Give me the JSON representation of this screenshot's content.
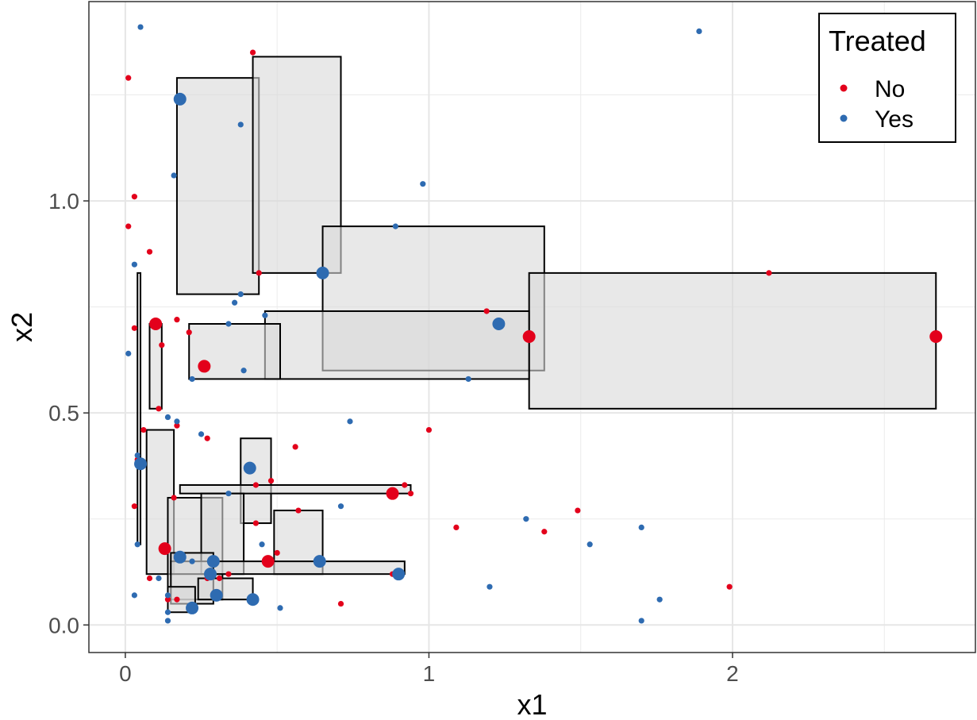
{
  "chart_data": {
    "type": "scatter",
    "title": "",
    "xlabel": "x1",
    "ylabel": "x2",
    "xlim": [
      -0.12,
      2.8
    ],
    "ylim": [
      -0.065,
      1.47
    ],
    "x_ticks": [
      0,
      1,
      2
    ],
    "x_tick_labels": [
      "0",
      "1",
      "2"
    ],
    "y_ticks": [
      0.0,
      0.5,
      1.0
    ],
    "y_tick_labels": [
      "0.0",
      "0.5",
      "1.0"
    ],
    "x_minor_ticks": [
      0.5,
      1.5,
      2.5
    ],
    "y_minor_ticks": [
      0.25,
      0.75,
      1.25
    ],
    "grid": true,
    "legend": {
      "title": "Treated",
      "position": "top-right",
      "entries": [
        {
          "label": "No",
          "color": "#E3001B"
        },
        {
          "label": "Yes",
          "color": "#2E6BB1"
        }
      ]
    },
    "colors": {
      "No": "#E3001B",
      "Yes": "#2E6BB1",
      "box_fill": "#d9d9d9",
      "box_stroke": "#000000"
    },
    "rectangles": [
      {
        "x0": 0.17,
        "x1": 0.44,
        "y0": 0.78,
        "y1": 1.29
      },
      {
        "x0": 0.42,
        "x1": 0.71,
        "y0": 0.83,
        "y1": 1.34
      },
      {
        "x0": 0.65,
        "x1": 1.38,
        "y0": 0.6,
        "y1": 0.94
      },
      {
        "x0": 1.33,
        "x1": 2.67,
        "y0": 0.51,
        "y1": 0.83
      },
      {
        "x0": 0.46,
        "x1": 1.33,
        "y0": 0.58,
        "y1": 0.74
      },
      {
        "x0": 0.21,
        "x1": 0.51,
        "y0": 0.58,
        "y1": 0.71
      },
      {
        "x0": 0.08,
        "x1": 0.12,
        "y0": 0.51,
        "y1": 0.71
      },
      {
        "x0": 0.04,
        "x1": 0.05,
        "y0": 0.19,
        "y1": 0.83
      },
      {
        "x0": 0.07,
        "x1": 0.16,
        "y0": 0.12,
        "y1": 0.46
      },
      {
        "x0": 0.38,
        "x1": 0.48,
        "y0": 0.24,
        "y1": 0.44
      },
      {
        "x0": 0.18,
        "x1": 0.94,
        "y0": 0.31,
        "y1": 0.33
      },
      {
        "x0": 0.14,
        "x1": 0.32,
        "y0": 0.06,
        "y1": 0.3
      },
      {
        "x0": 0.25,
        "x1": 0.39,
        "y0": 0.12,
        "y1": 0.31
      },
      {
        "x0": 0.49,
        "x1": 0.65,
        "y0": 0.12,
        "y1": 0.27
      },
      {
        "x0": 0.15,
        "x1": 0.92,
        "y0": 0.12,
        "y1": 0.15
      },
      {
        "x0": 0.15,
        "x1": 0.29,
        "y0": 0.05,
        "y1": 0.17
      },
      {
        "x0": 0.24,
        "x1": 0.42,
        "y0": 0.06,
        "y1": 0.11
      },
      {
        "x0": 0.14,
        "x1": 0.23,
        "y0": 0.03,
        "y1": 0.09
      }
    ],
    "series": [
      {
        "name": "No",
        "points": [
          [
            0.01,
            1.29,
            1
          ],
          [
            0.42,
            1.35,
            1
          ],
          [
            0.03,
            1.01,
            1
          ],
          [
            0.01,
            0.94,
            1
          ],
          [
            0.08,
            0.88,
            1
          ],
          [
            0.44,
            0.83,
            1
          ],
          [
            2.12,
            0.83,
            1
          ],
          [
            1.19,
            0.74,
            1
          ],
          [
            0.17,
            0.72,
            1
          ],
          [
            0.03,
            0.7,
            1
          ],
          [
            0.1,
            0.71,
            2
          ],
          [
            1.33,
            0.68,
            2
          ],
          [
            2.67,
            0.68,
            2
          ],
          [
            0.21,
            0.69,
            1
          ],
          [
            0.12,
            0.66,
            1
          ],
          [
            0.26,
            0.61,
            2
          ],
          [
            0.11,
            0.51,
            1
          ],
          [
            0.06,
            0.46,
            1
          ],
          [
            0.17,
            0.47,
            1
          ],
          [
            1.0,
            0.46,
            1
          ],
          [
            0.27,
            0.44,
            1
          ],
          [
            0.56,
            0.42,
            1
          ],
          [
            0.04,
            0.39,
            1
          ],
          [
            0.43,
            0.33,
            1
          ],
          [
            0.48,
            0.34,
            1
          ],
          [
            0.88,
            0.31,
            2
          ],
          [
            0.92,
            0.33,
            1
          ],
          [
            0.94,
            0.31,
            1
          ],
          [
            0.16,
            0.3,
            1
          ],
          [
            0.03,
            0.28,
            1
          ],
          [
            0.57,
            0.27,
            1
          ],
          [
            1.49,
            0.27,
            1
          ],
          [
            0.43,
            0.24,
            1
          ],
          [
            1.09,
            0.23,
            1
          ],
          [
            1.38,
            0.22,
            1
          ],
          [
            0.13,
            0.18,
            2
          ],
          [
            0.5,
            0.17,
            1
          ],
          [
            0.47,
            0.15,
            2
          ],
          [
            0.88,
            0.12,
            1
          ],
          [
            0.34,
            0.12,
            1
          ],
          [
            0.31,
            0.11,
            1
          ],
          [
            0.27,
            0.11,
            1
          ],
          [
            0.08,
            0.11,
            1
          ],
          [
            0.14,
            0.06,
            1
          ],
          [
            0.17,
            0.06,
            1
          ],
          [
            1.99,
            0.09,
            1
          ],
          [
            0.71,
            0.05,
            1
          ]
        ]
      },
      {
        "name": "Yes",
        "points": [
          [
            0.05,
            1.41,
            1
          ],
          [
            1.89,
            1.4,
            1
          ],
          [
            0.18,
            1.24,
            2
          ],
          [
            0.38,
            1.18,
            1
          ],
          [
            0.16,
            1.06,
            1
          ],
          [
            0.98,
            1.04,
            1
          ],
          [
            0.89,
            0.94,
            1
          ],
          [
            0.03,
            0.85,
            1
          ],
          [
            0.65,
            0.83,
            2
          ],
          [
            0.38,
            0.78,
            1
          ],
          [
            0.36,
            0.76,
            1
          ],
          [
            0.46,
            0.73,
            1
          ],
          [
            0.34,
            0.71,
            1
          ],
          [
            1.23,
            0.71,
            2
          ],
          [
            0.01,
            0.64,
            1
          ],
          [
            0.39,
            0.6,
            1
          ],
          [
            0.22,
            0.58,
            1
          ],
          [
            1.13,
            0.58,
            1
          ],
          [
            0.14,
            0.49,
            1
          ],
          [
            0.74,
            0.48,
            1
          ],
          [
            0.17,
            0.48,
            1
          ],
          [
            0.25,
            0.45,
            1
          ],
          [
            0.04,
            0.4,
            1
          ],
          [
            0.05,
            0.38,
            2
          ],
          [
            0.41,
            0.37,
            2
          ],
          [
            0.34,
            0.31,
            1
          ],
          [
            0.71,
            0.28,
            1
          ],
          [
            1.32,
            0.25,
            1
          ],
          [
            1.7,
            0.23,
            1
          ],
          [
            0.45,
            0.19,
            1
          ],
          [
            1.53,
            0.19,
            1
          ],
          [
            0.04,
            0.19,
            1
          ],
          [
            0.18,
            0.16,
            2
          ],
          [
            0.29,
            0.15,
            2
          ],
          [
            0.64,
            0.15,
            2
          ],
          [
            0.22,
            0.15,
            1
          ],
          [
            0.9,
            0.12,
            2
          ],
          [
            0.28,
            0.12,
            2
          ],
          [
            0.11,
            0.11,
            1
          ],
          [
            1.2,
            0.09,
            1
          ],
          [
            0.03,
            0.07,
            1
          ],
          [
            0.14,
            0.07,
            1
          ],
          [
            0.3,
            0.07,
            2
          ],
          [
            0.42,
            0.06,
            2
          ],
          [
            1.76,
            0.06,
            1
          ],
          [
            0.51,
            0.04,
            1
          ],
          [
            0.22,
            0.04,
            2
          ],
          [
            0.14,
            0.03,
            1
          ],
          [
            1.7,
            0.01,
            1
          ],
          [
            0.14,
            0.01,
            1
          ]
        ]
      }
    ]
  }
}
